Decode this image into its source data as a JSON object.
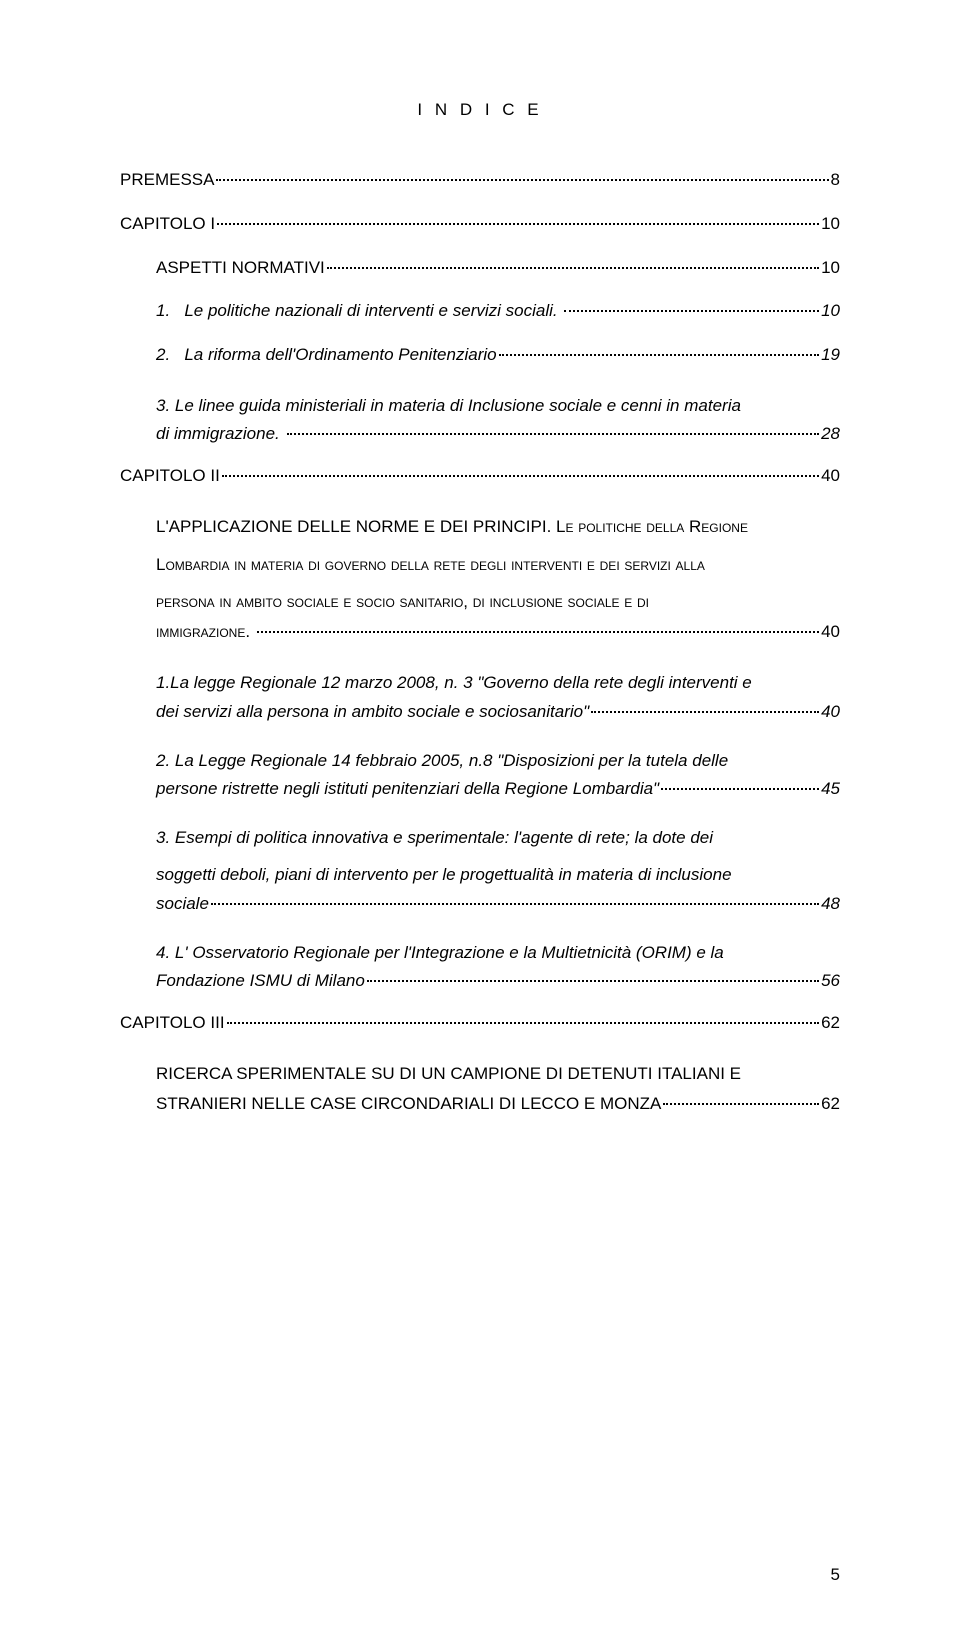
{
  "title": "I N D I C E",
  "entries": [
    {
      "type": "line",
      "indent": 0,
      "style": "",
      "text": "PREMESSA",
      "page": "8"
    },
    {
      "type": "line",
      "indent": 0,
      "style": "",
      "text": "CAPITOLO I",
      "page": "10"
    },
    {
      "type": "line",
      "indent": 1,
      "style": "",
      "text": "ASPETTI NORMATIVI",
      "page": "10"
    },
    {
      "type": "line",
      "indent": 1,
      "style": "italic",
      "text": "1.   Le politiche nazionali di interventi e servizi sociali. ",
      "page": "10"
    },
    {
      "type": "line",
      "indent": 1,
      "style": "italic",
      "text": "2.   La riforma dell'Ordinamento Penitenziario",
      "page": "19"
    },
    {
      "type": "multi",
      "style": "italic",
      "lines": [
        "3.   Le linee guida ministeriali in materia di Inclusione sociale e cenni in materia"
      ],
      "lastline": "di immigrazione. ",
      "page": "28"
    },
    {
      "type": "line",
      "indent": 0,
      "style": "",
      "text": "CAPITOLO II",
      "page": "40"
    },
    {
      "type": "block",
      "firstline": "L'APPLICAZIONE DELLE NORME E DEI PRINCIPI. Le politiche della Regione",
      "mid": [
        "Lombardia in materia di governo della rete degli interventi e dei servizi alla",
        "persona in ambito sociale e socio sanitario, di inclusione sociale e di"
      ],
      "lastline": "immigrazione. ",
      "page": "40"
    },
    {
      "type": "multi",
      "style": "italic",
      "lines": [
        "1.La legge Regionale 12 marzo 2008, n. 3 \"Governo della rete degli interventi e"
      ],
      "lastline": "dei servizi alla persona in ambito sociale e sociosanitario\"",
      "page": "40"
    },
    {
      "type": "multi",
      "style": "italic",
      "lines": [
        "2.   La Legge Regionale 14 febbraio 2005, n.8 \"Disposizioni per la tutela delle"
      ],
      "lastline": "persone ristrette negli istituti penitenziari della Regione Lombardia\"",
      "page": "45"
    },
    {
      "type": "multi",
      "style": "italic",
      "lines": [
        "3.   Esempi di politica innovativa e sperimentale: l'agente di rete; la dote dei",
        "soggetti deboli, piani di intervento per le progettualità in materia di inclusione"
      ],
      "lastline": "sociale",
      "page": "48"
    },
    {
      "type": "multi",
      "style": "italic",
      "lines": [
        "4.   L' Osservatorio Regionale per l'Integrazione e la Multietnicità (ORIM) e la"
      ],
      "lastline": "Fondazione ISMU di Milano",
      "page": "56"
    },
    {
      "type": "line",
      "indent": 0,
      "style": "",
      "text": "CAPITOLO III",
      "page": "62"
    },
    {
      "type": "multiplain",
      "lines": [
        "RICERCA SPERIMENTALE SU DI UN CAMPIONE DI DETENUTI ITALIANI E"
      ],
      "lastline": "STRANIERI NELLE CASE CIRCONDARIALI DI LECCO E MONZA",
      "page": "62"
    }
  ],
  "page_number": "5"
}
